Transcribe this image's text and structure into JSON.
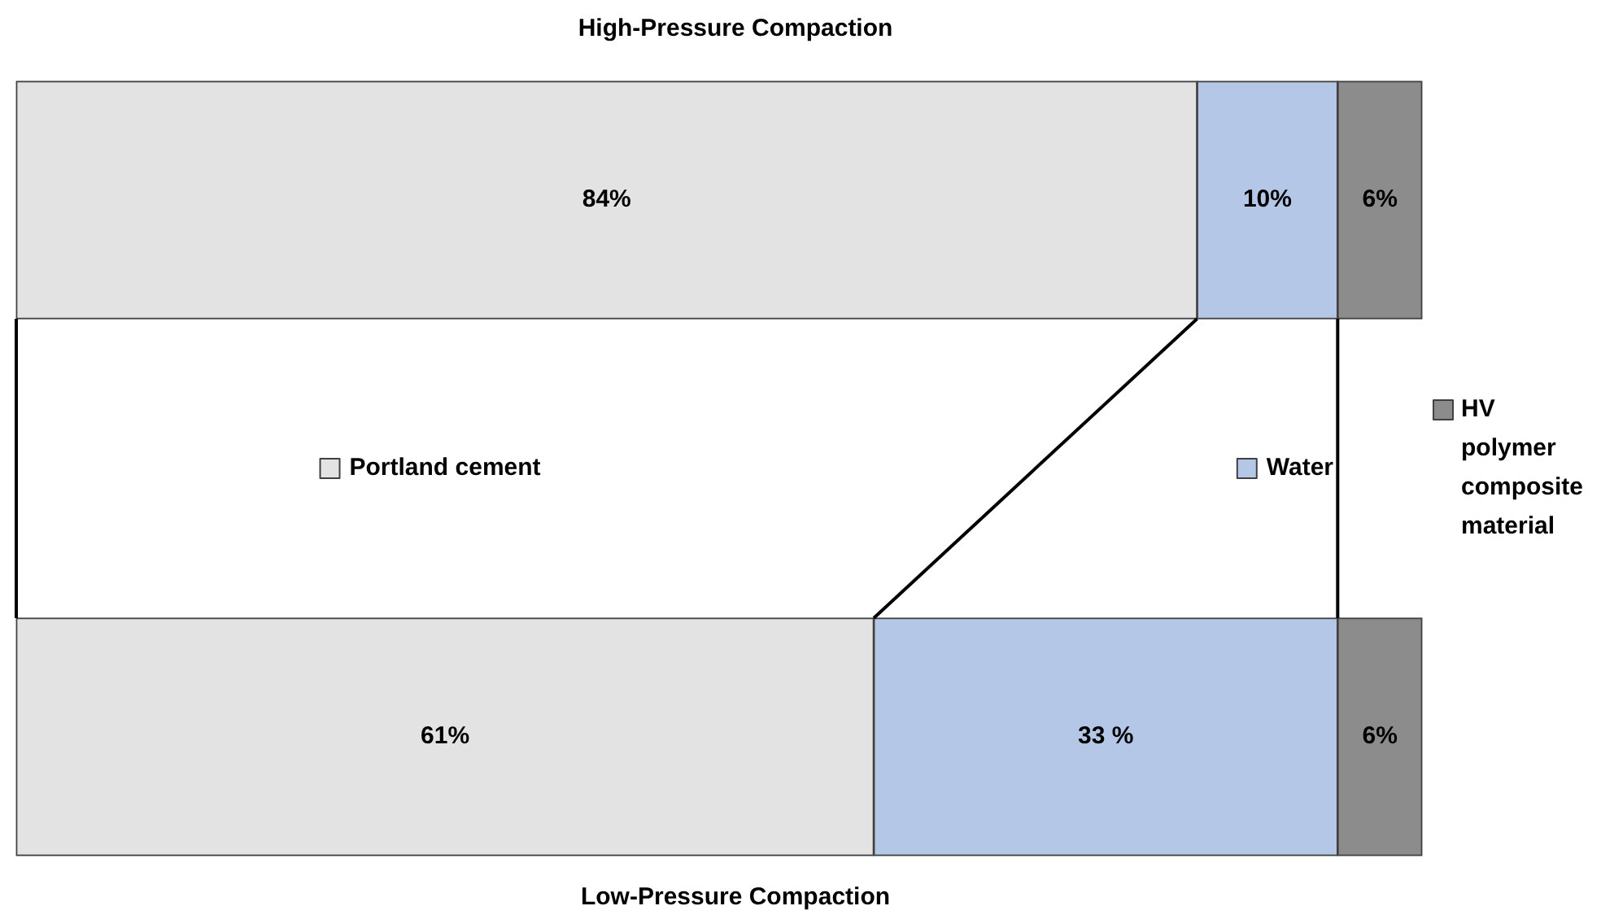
{
  "chart_data": {
    "type": "bar",
    "orientation": "horizontal",
    "stacked": true,
    "categories": [
      "High-Pressure Compaction",
      "Low-Pressure Compaction"
    ],
    "series": [
      {
        "name": "Portland cement",
        "color": "#e3e3e3",
        "values": [
          84,
          61
        ],
        "value_labels": [
          "84%",
          "61%"
        ]
      },
      {
        "name": "Water",
        "color": "#b4c7e7",
        "values": [
          10,
          33
        ],
        "value_labels": [
          "10%",
          "33 %"
        ]
      },
      {
        "name": "HV polymer composite material",
        "color": "#8c8c8c",
        "values": [
          6,
          6
        ],
        "value_labels": [
          "6%",
          "6%"
        ]
      }
    ],
    "xlim": [
      0,
      100
    ],
    "grid": false,
    "legend": "center",
    "tick_labels": false
  }
}
